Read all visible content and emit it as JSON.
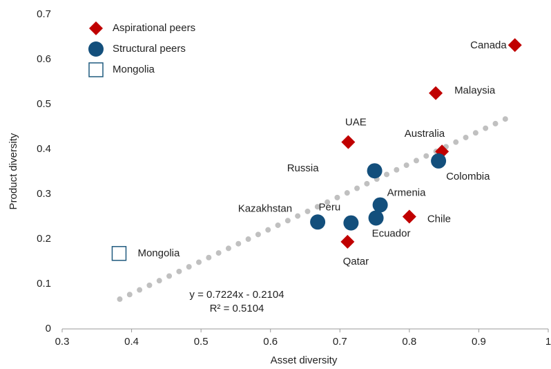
{
  "chart_data": {
    "type": "scatter",
    "x_label": "Asset diversity",
    "y_label": "Product diversity",
    "xlim": [
      0.3,
      1.0
    ],
    "xticks": [
      0.3,
      0.4,
      0.5,
      0.6,
      0.7,
      0.8,
      0.9,
      1
    ],
    "ylim": [
      0,
      0.7
    ],
    "yticks": [
      0,
      0.1,
      0.2,
      0.3,
      0.4,
      0.5,
      0.6,
      0.7
    ],
    "legend": "top-left",
    "series": [
      {
        "name": "Aspirational peers",
        "marker": "diamond",
        "color": "#c00000",
        "labels": [
          "Canada",
          "Malaysia",
          "UAE",
          "Australia",
          "Chile",
          "Qatar"
        ],
        "x": [
          0.952,
          0.838,
          0.712,
          0.847,
          0.8,
          0.711
        ],
        "values": [
          0.632,
          0.525,
          0.416,
          0.395,
          0.25,
          0.194
        ]
      },
      {
        "name": "Structural peers",
        "marker": "circle",
        "color": "#134f7c",
        "labels": [
          "Russia",
          "Colombia",
          "Armenia",
          "Ecuador",
          "Peru",
          "Kazakhstan"
        ],
        "x": [
          0.75,
          0.842,
          0.758,
          0.752,
          0.716,
          0.668
        ],
        "values": [
          0.352,
          0.374,
          0.276,
          0.247,
          0.236,
          0.238
        ]
      },
      {
        "name": "Mongolia",
        "marker": "square",
        "color": "#1f5a7e",
        "labels": [
          "Mongolia"
        ],
        "x": [
          0.382
        ],
        "values": [
          0.168
        ]
      }
    ],
    "trendline": {
      "slope": 0.7224,
      "intercept": -0.2104,
      "x": [
        0.383,
        0.945
      ],
      "color": "#c0c0c0",
      "equation": "y = 0.7224x - 0.2104",
      "r2": "R² = 0.5104"
    }
  }
}
